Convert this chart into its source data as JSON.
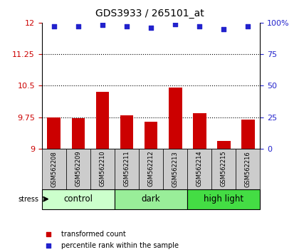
{
  "title": "GDS3933 / 265101_at",
  "samples": [
    "GSM562208",
    "GSM562209",
    "GSM562210",
    "GSM562211",
    "GSM562212",
    "GSM562213",
    "GSM562214",
    "GSM562215",
    "GSM562216"
  ],
  "bar_values": [
    9.75,
    9.72,
    10.35,
    9.8,
    9.65,
    10.45,
    9.85,
    9.18,
    9.7
  ],
  "percentile_values": [
    97,
    97,
    98,
    97,
    96,
    99,
    97,
    95,
    97
  ],
  "ylim_left": [
    9.0,
    12.0
  ],
  "ylim_right": [
    0,
    100
  ],
  "yticks_left": [
    9.0,
    9.75,
    10.5,
    11.25,
    12.0
  ],
  "yticks_right": [
    0,
    25,
    50,
    75,
    100
  ],
  "ytick_labels_left": [
    "9",
    "9.75",
    "10.5",
    "11.25",
    "12"
  ],
  "ytick_labels_right": [
    "0",
    "25",
    "50",
    "75",
    "100%"
  ],
  "hlines": [
    9.75,
    10.5,
    11.25
  ],
  "bar_color": "#cc0000",
  "dot_color": "#2222cc",
  "bar_width": 0.55,
  "group_defs": [
    {
      "start": 0,
      "end": 3,
      "label": "control",
      "color": "#ccffcc"
    },
    {
      "start": 3,
      "end": 6,
      "label": "dark",
      "color": "#99ee99"
    },
    {
      "start": 6,
      "end": 9,
      "label": "high light",
      "color": "#44dd44"
    }
  ],
  "stress_label": "stress",
  "legend_items": [
    "transformed count",
    "percentile rank within the sample"
  ],
  "legend_colors": [
    "#cc0000",
    "#2222cc"
  ],
  "sample_bg_color": "#cccccc",
  "sample_font_size": 6.0,
  "group_font_size": 8.5,
  "title_font_size": 10,
  "tick_font_size": 8
}
